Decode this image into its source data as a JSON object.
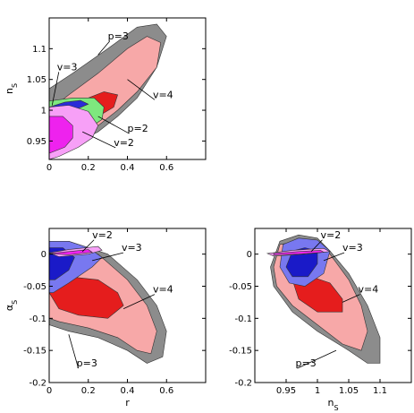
{
  "chart_data": [
    {
      "type": "contour",
      "panel": "top-left",
      "xlabel": "",
      "ylabel": "n_S",
      "xlim": [
        0,
        0.8
      ],
      "ylim": [
        0.92,
        1.15
      ],
      "xticks": [
        0,
        0.2,
        0.4,
        0.6
      ],
      "yticks": [
        0.95,
        1,
        1.05,
        1.1
      ],
      "xtick_labels": [
        "0",
        "0.2",
        "0.4",
        "0.6"
      ],
      "ytick_labels": [
        "0.95",
        "1",
        "1.05",
        "1.1"
      ],
      "grid": false,
      "regions": [
        {
          "key": "p3_outer",
          "color": "#8c8c8c",
          "points": [
            [
              0,
              0.92
            ],
            [
              0,
              1.035
            ],
            [
              0.12,
              1.06
            ],
            [
              0.3,
              1.1
            ],
            [
              0.45,
              1.135
            ],
            [
              0.55,
              1.14
            ],
            [
              0.6,
              1.12
            ],
            [
              0.55,
              1.07
            ],
            [
              0.45,
              1.02
            ],
            [
              0.35,
              0.99
            ],
            [
              0.25,
              0.965
            ],
            [
              0.1,
              0.94
            ],
            [
              0,
              0.92
            ]
          ]
        },
        {
          "key": "v4_outer",
          "color": "#f7a8a8",
          "points": [
            [
              0,
              1.0
            ],
            [
              0.1,
              1.025
            ],
            [
              0.25,
              1.06
            ],
            [
              0.4,
              1.1
            ],
            [
              0.5,
              1.12
            ],
            [
              0.57,
              1.11
            ],
            [
              0.55,
              1.07
            ],
            [
              0.45,
              1.03
            ],
            [
              0.35,
              1.0
            ],
            [
              0.25,
              0.975
            ],
            [
              0.1,
              0.955
            ],
            [
              0,
              0.96
            ],
            [
              0,
              1.0
            ]
          ]
        },
        {
          "key": "v4_inner",
          "color": "#e51d1d",
          "points": [
            [
              0.1,
              1.0
            ],
            [
              0.2,
              1.02
            ],
            [
              0.28,
              1.03
            ],
            [
              0.35,
              1.025
            ],
            [
              0.33,
              1.005
            ],
            [
              0.25,
              0.99
            ],
            [
              0.15,
              0.985
            ],
            [
              0.1,
              1.0
            ]
          ]
        },
        {
          "key": "p2_outer",
          "color": "#7ee87e",
          "points": [
            [
              0,
              0.93
            ],
            [
              0,
              1.015
            ],
            [
              0.12,
              1.02
            ],
            [
              0.23,
              1.02
            ],
            [
              0.28,
              1.005
            ],
            [
              0.27,
              0.985
            ],
            [
              0.2,
              0.97
            ],
            [
              0.12,
              0.955
            ],
            [
              0.05,
              0.945
            ],
            [
              0,
              0.93
            ]
          ]
        },
        {
          "key": "v3_outer",
          "color": "#2b2bd8",
          "points": [
            [
              0,
              1.005
            ],
            [
              0.08,
              1.013
            ],
            [
              0.16,
              1.016
            ],
            [
              0.2,
              1.01
            ],
            [
              0.15,
              1.003
            ],
            [
              0.05,
              1.0
            ],
            [
              0,
              1.005
            ]
          ]
        },
        {
          "key": "v2_outer",
          "color": "#f7a0f7",
          "points": [
            [
              0,
              0.92
            ],
            [
              0,
              1.005
            ],
            [
              0.1,
              1.008
            ],
            [
              0.2,
              0.998
            ],
            [
              0.25,
              0.975
            ],
            [
              0.22,
              0.955
            ],
            [
              0.15,
              0.94
            ],
            [
              0.05,
              0.925
            ],
            [
              0,
              0.92
            ]
          ]
        },
        {
          "key": "v2_inner",
          "color": "#ee22ee",
          "points": [
            [
              0,
              0.93
            ],
            [
              0,
              0.99
            ],
            [
              0.07,
              0.99
            ],
            [
              0.12,
              0.975
            ],
            [
              0.12,
              0.955
            ],
            [
              0.08,
              0.94
            ],
            [
              0,
              0.93
            ]
          ]
        }
      ],
      "annotations": [
        {
          "text": "p=3",
          "x": 0.3,
          "y": 1.115,
          "arrow_to": [
            0.25,
            1.09
          ]
        },
        {
          "text": "v=3",
          "x": 0.04,
          "y": 1.065,
          "arrow_to": [
            0.015,
            1.008
          ]
        },
        {
          "text": "v=4",
          "x": 0.53,
          "y": 1.02,
          "arrow_to": [
            0.4,
            1.05
          ]
        },
        {
          "text": "p=2",
          "x": 0.4,
          "y": 0.965,
          "arrow_to": [
            0.25,
            0.99
          ]
        },
        {
          "text": "v=2",
          "x": 0.33,
          "y": 0.942,
          "arrow_to": [
            0.17,
            0.965
          ]
        }
      ]
    },
    {
      "type": "contour",
      "panel": "bottom-left",
      "xlabel": "r",
      "ylabel": "α_S",
      "xlim": [
        0,
        0.8
      ],
      "ylim": [
        -0.2,
        0.04
      ],
      "xticks": [
        0,
        0.2,
        0.4,
        0.6
      ],
      "yticks": [
        -0.2,
        -0.15,
        -0.1,
        -0.05,
        0
      ],
      "xtick_labels": [
        "0",
        "0.2",
        "0.4",
        "0.6"
      ],
      "ytick_labels": [
        "-0.2",
        "-0.15",
        "-0.1",
        "-0.05",
        "0"
      ],
      "grid": false,
      "regions": [
        {
          "key": "p3_outer",
          "color": "#8c8c8c",
          "points": [
            [
              0,
              -0.11
            ],
            [
              0,
              0.02
            ],
            [
              0.1,
              0.02
            ],
            [
              0.3,
              0.0
            ],
            [
              0.45,
              -0.04
            ],
            [
              0.55,
              -0.08
            ],
            [
              0.6,
              -0.12
            ],
            [
              0.58,
              -0.16
            ],
            [
              0.5,
              -0.17
            ],
            [
              0.4,
              -0.15
            ],
            [
              0.25,
              -0.13
            ],
            [
              0.1,
              -0.12
            ],
            [
              0,
              -0.11
            ]
          ]
        },
        {
          "key": "v4_outer",
          "color": "#f7a8a8",
          "points": [
            [
              0,
              -0.1
            ],
            [
              0,
              0.015
            ],
            [
              0.1,
              0.015
            ],
            [
              0.25,
              0.0
            ],
            [
              0.4,
              -0.04
            ],
            [
              0.5,
              -0.08
            ],
            [
              0.55,
              -0.12
            ],
            [
              0.52,
              -0.155
            ],
            [
              0.45,
              -0.15
            ],
            [
              0.35,
              -0.13
            ],
            [
              0.2,
              -0.115
            ],
            [
              0.05,
              -0.105
            ],
            [
              0,
              -0.1
            ]
          ]
        },
        {
          "key": "v4_inner",
          "color": "#e51d1d",
          "points": [
            [
              0,
              -0.06
            ],
            [
              0.1,
              -0.035
            ],
            [
              0.25,
              -0.04
            ],
            [
              0.35,
              -0.06
            ],
            [
              0.38,
              -0.08
            ],
            [
              0.3,
              -0.1
            ],
            [
              0.15,
              -0.095
            ],
            [
              0.05,
              -0.085
            ],
            [
              0,
              -0.06
            ]
          ]
        },
        {
          "key": "v3_outer",
          "color": "#7878f0",
          "points": [
            [
              0,
              -0.06
            ],
            [
              0,
              0.02
            ],
            [
              0.1,
              0.02
            ],
            [
              0.2,
              0.01
            ],
            [
              0.27,
              -0.005
            ],
            [
              0.22,
              -0.02
            ],
            [
              0.1,
              -0.045
            ],
            [
              0.02,
              -0.06
            ],
            [
              0,
              -0.06
            ]
          ]
        },
        {
          "key": "v3_inner",
          "color": "#1a1ac8",
          "points": [
            [
              0,
              -0.04
            ],
            [
              0,
              0.01
            ],
            [
              0.07,
              0.01
            ],
            [
              0.13,
              -0.005
            ],
            [
              0.1,
              -0.025
            ],
            [
              0.03,
              -0.04
            ],
            [
              0,
              -0.04
            ]
          ]
        },
        {
          "key": "v2_outer",
          "color": "#f7a0f7",
          "points": [
            [
              0,
              0.002
            ],
            [
              0.1,
              0.007
            ],
            [
              0.25,
              0.012
            ],
            [
              0.27,
              0.006
            ],
            [
              0.2,
              0.0
            ],
            [
              0.05,
              -0.004
            ],
            [
              0,
              0.002
            ]
          ]
        },
        {
          "key": "v2_inner",
          "color": "#ee22ee",
          "points": [
            [
              0,
              0.001
            ],
            [
              0.1,
              0.004
            ],
            [
              0.2,
              0.007
            ],
            [
              0.22,
              0.003
            ],
            [
              0.1,
              -0.001
            ],
            [
              0,
              0.001
            ]
          ]
        }
      ],
      "annotations": [
        {
          "text": "v=2",
          "x": 0.22,
          "y": 0.025,
          "arrow_to": [
            0.17,
            0.004
          ]
        },
        {
          "text": "v=3",
          "x": 0.37,
          "y": 0.005,
          "arrow_to": [
            0.22,
            -0.01
          ]
        },
        {
          "text": "v=4",
          "x": 0.53,
          "y": -0.06,
          "arrow_to": [
            0.38,
            -0.085
          ]
        },
        {
          "text": "p=3",
          "x": 0.14,
          "y": -0.175,
          "arrow_to": [
            0.1,
            -0.125
          ]
        }
      ]
    },
    {
      "type": "contour",
      "panel": "bottom-right",
      "xlabel": "n_S",
      "ylabel": "",
      "xlim": [
        0.9,
        1.15
      ],
      "ylim": [
        -0.2,
        0.04
      ],
      "xticks": [
        0.95,
        1,
        1.05,
        1.1
      ],
      "yticks": [
        -0.2,
        -0.15,
        -0.1,
        -0.05,
        0
      ],
      "xtick_labels": [
        "0.95",
        "1",
        "1.05",
        "1.1"
      ],
      "ytick_labels": [
        "-0.2",
        "-0.15",
        "-0.1",
        "-0.05",
        "0"
      ],
      "grid": false,
      "regions": [
        {
          "key": "p3_outer",
          "color": "#8c8c8c",
          "points": [
            [
              0.925,
              -0.02
            ],
            [
              0.94,
              0.02
            ],
            [
              0.97,
              0.03
            ],
            [
              1.0,
              0.025
            ],
            [
              1.02,
              0.005
            ],
            [
              1.05,
              -0.03
            ],
            [
              1.08,
              -0.08
            ],
            [
              1.1,
              -0.13
            ],
            [
              1.1,
              -0.17
            ],
            [
              1.08,
              -0.17
            ],
            [
              1.05,
              -0.15
            ],
            [
              1.0,
              -0.12
            ],
            [
              0.96,
              -0.09
            ],
            [
              0.93,
              -0.05
            ],
            [
              0.925,
              -0.02
            ]
          ]
        },
        {
          "key": "v4_outer",
          "color": "#f7a8a8",
          "points": [
            [
              0.93,
              -0.02
            ],
            [
              0.94,
              0.015
            ],
            [
              0.97,
              0.02
            ],
            [
              1.0,
              0.015
            ],
            [
              1.02,
              0.0
            ],
            [
              1.05,
              -0.04
            ],
            [
              1.07,
              -0.08
            ],
            [
              1.08,
              -0.12
            ],
            [
              1.07,
              -0.15
            ],
            [
              1.04,
              -0.14
            ],
            [
              1.0,
              -0.11
            ],
            [
              0.96,
              -0.08
            ],
            [
              0.935,
              -0.05
            ],
            [
              0.93,
              -0.02
            ]
          ]
        },
        {
          "key": "v4_inner",
          "color": "#e51d1d",
          "points": [
            [
              0.96,
              -0.04
            ],
            [
              0.99,
              -0.035
            ],
            [
              1.02,
              -0.045
            ],
            [
              1.04,
              -0.07
            ],
            [
              1.04,
              -0.09
            ],
            [
              1.0,
              -0.09
            ],
            [
              0.97,
              -0.07
            ],
            [
              0.96,
              -0.04
            ]
          ]
        },
        {
          "key": "v3_outer",
          "color": "#7878f0",
          "points": [
            [
              0.94,
              -0.02
            ],
            [
              0.945,
              0.015
            ],
            [
              0.97,
              0.025
            ],
            [
              1.0,
              0.022
            ],
            [
              1.02,
              0.005
            ],
            [
              1.01,
              -0.03
            ],
            [
              0.98,
              -0.05
            ],
            [
              0.955,
              -0.045
            ],
            [
              0.94,
              -0.02
            ]
          ]
        },
        {
          "key": "v3_inner",
          "color": "#1a1ac8",
          "points": [
            [
              0.95,
              -0.02
            ],
            [
              0.96,
              0.005
            ],
            [
              0.98,
              0.01
            ],
            [
              1.0,
              0.005
            ],
            [
              1.0,
              -0.015
            ],
            [
              0.985,
              -0.035
            ],
            [
              0.96,
              -0.035
            ],
            [
              0.95,
              -0.02
            ]
          ]
        },
        {
          "key": "v2_outer",
          "color": "#f7a0f7",
          "points": [
            [
              0.92,
              0.001
            ],
            [
              0.96,
              0.006
            ],
            [
              1.01,
              0.009
            ],
            [
              1.02,
              0.004
            ],
            [
              0.98,
              0.0
            ],
            [
              0.93,
              -0.003
            ],
            [
              0.92,
              0.001
            ]
          ]
        },
        {
          "key": "v2_inner",
          "color": "#ee22ee",
          "points": [
            [
              0.93,
              0.001
            ],
            [
              0.97,
              0.004
            ],
            [
              1.005,
              0.006
            ],
            [
              1.01,
              0.003
            ],
            [
              0.97,
              0.0
            ],
            [
              0.93,
              -0.001
            ]
          ]
        }
      ],
      "annotations": [
        {
          "text": "v=2",
          "x": 1.005,
          "y": 0.025,
          "arrow_to": [
            0.99,
            0.004
          ]
        },
        {
          "text": "v=3",
          "x": 1.04,
          "y": 0.005,
          "arrow_to": [
            1.01,
            -0.01
          ]
        },
        {
          "text": "v=4",
          "x": 1.065,
          "y": -0.06,
          "arrow_to": [
            1.04,
            -0.075
          ]
        },
        {
          "text": "p=3",
          "x": 0.965,
          "y": -0.175,
          "arrow_to": [
            1.03,
            -0.15
          ]
        }
      ]
    }
  ]
}
